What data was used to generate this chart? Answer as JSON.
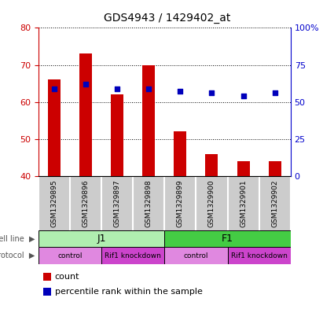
{
  "title": "GDS4943 / 1429402_at",
  "samples": [
    "GSM1329895",
    "GSM1329896",
    "GSM1329897",
    "GSM1329898",
    "GSM1329899",
    "GSM1329900",
    "GSM1329901",
    "GSM1329902"
  ],
  "counts": [
    66,
    73,
    62,
    70,
    52,
    46,
    44,
    44
  ],
  "percentile_ranks": [
    59,
    62,
    59,
    59,
    57,
    56,
    54,
    56
  ],
  "y_min": 40,
  "y_max": 80,
  "y_ticks": [
    40,
    50,
    60,
    70,
    80
  ],
  "y2_ticks": [
    0,
    25,
    50,
    75,
    100
  ],
  "y2_ticklabels": [
    "0",
    "25",
    "50",
    "75",
    "100%"
  ],
  "cell_line_groups": [
    {
      "label": "J1",
      "start": 0,
      "end": 4,
      "color": "#B0EEB0"
    },
    {
      "label": "F1",
      "start": 4,
      "end": 8,
      "color": "#44CC44"
    }
  ],
  "protocol_groups": [
    {
      "label": "control",
      "start": 0,
      "end": 2,
      "color": "#E088E0"
    },
    {
      "label": "Rif1 knockdown",
      "start": 2,
      "end": 4,
      "color": "#CC44CC"
    },
    {
      "label": "control",
      "start": 4,
      "end": 6,
      "color": "#E088E0"
    },
    {
      "label": "Rif1 knockdown",
      "start": 6,
      "end": 8,
      "color": "#CC44CC"
    }
  ],
  "bar_color": "#CC0000",
  "dot_color": "#0000BB",
  "bar_bottom": 40,
  "tick_color_left": "#CC0000",
  "tick_color_right": "#0000CC",
  "sample_bg_color": "#CCCCCC",
  "cell_line_label": "cell line",
  "protocol_label": "protocol",
  "legend_count": "count",
  "legend_pct": "percentile rank within the sample"
}
